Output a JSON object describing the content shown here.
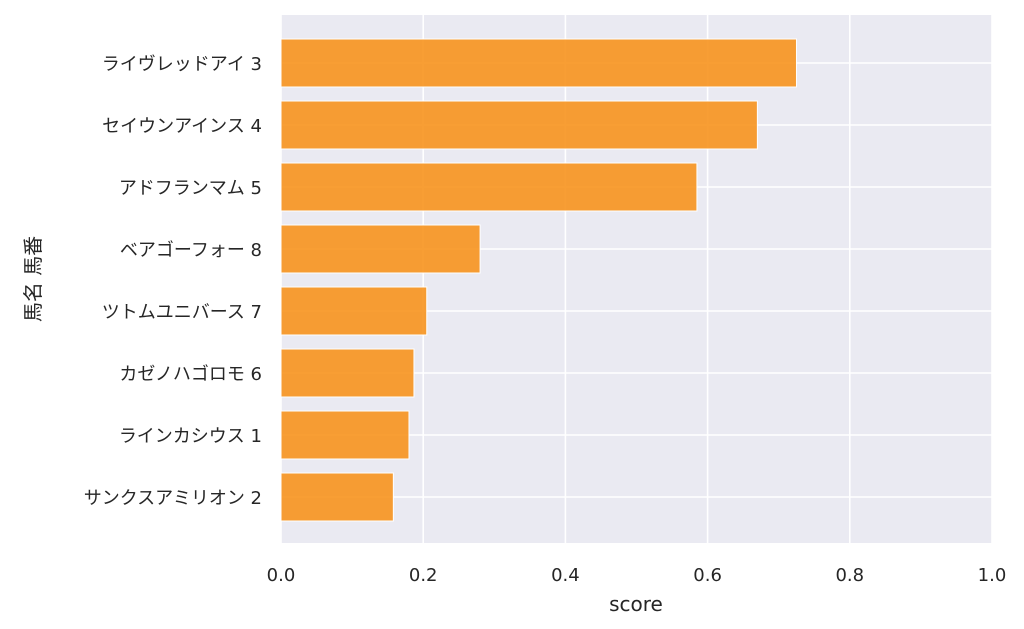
{
  "chart_data": {
    "type": "bar",
    "orientation": "horizontal",
    "title": "",
    "xlabel": "score",
    "ylabel": "馬名 馬番",
    "xlim": [
      0.0,
      1.0
    ],
    "xticks": [
      "0.0",
      "0.2",
      "0.4",
      "0.6",
      "0.8",
      "1.0"
    ],
    "grid": true,
    "bar_color": "#f7931e",
    "background_color": "#eaeaf2",
    "categories": [
      "ライヴレッドアイ 3",
      "セイウンアインス 4",
      "アドフランマム 5",
      "ベアゴーフォー 8",
      "ツトムユニバース 7",
      "カゼノハゴロモ 6",
      "ラインカシウス 1",
      "サンクスアミリオン 2"
    ],
    "values": [
      0.725,
      0.67,
      0.585,
      0.28,
      0.205,
      0.187,
      0.18,
      0.158
    ]
  }
}
